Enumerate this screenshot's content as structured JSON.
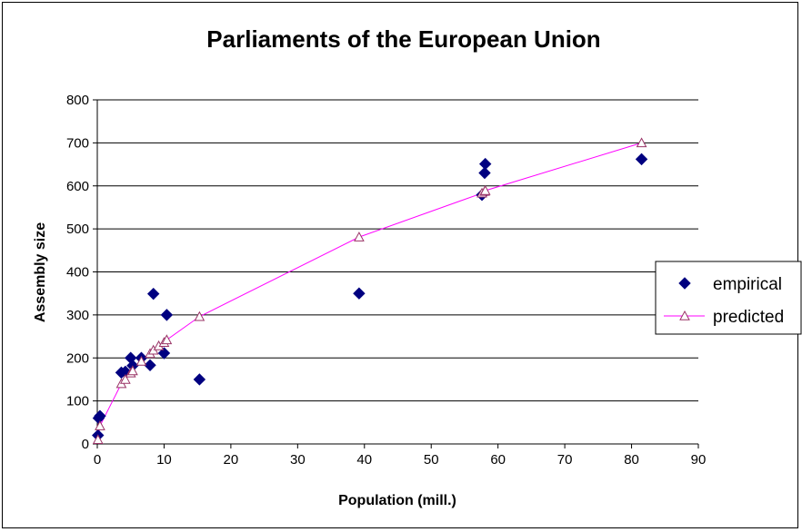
{
  "chart_data": {
    "type": "scatter",
    "title": "Parliaments of the European Union",
    "xlabel": "Population (mill.)",
    "ylabel": "Assembly size",
    "xlim": [
      0,
      90
    ],
    "ylim": [
      0,
      800
    ],
    "xticks": [
      0,
      10,
      20,
      30,
      40,
      50,
      60,
      70,
      80,
      90
    ],
    "yticks": [
      0,
      100,
      200,
      300,
      400,
      500,
      600,
      700,
      800
    ],
    "grid": "horizontal",
    "legend_position": "right",
    "series": [
      {
        "name": "empirical",
        "marker": "diamond",
        "color": "#000080",
        "line": false,
        "points": [
          [
            0.1,
            20
          ],
          [
            0.2,
            60
          ],
          [
            0.4,
            65
          ],
          [
            3.6,
            166
          ],
          [
            4.2,
            168
          ],
          [
            5.0,
            200
          ],
          [
            5.3,
            182
          ],
          [
            6.6,
            200
          ],
          [
            7.9,
            183
          ],
          [
            8.4,
            349
          ],
          [
            10.0,
            211
          ],
          [
            10.4,
            300
          ],
          [
            15.3,
            150
          ],
          [
            39.2,
            350
          ],
          [
            57.6,
            579
          ],
          [
            58.0,
            630
          ],
          [
            58.1,
            651
          ],
          [
            81.5,
            662
          ]
        ]
      },
      {
        "name": "predicted",
        "marker": "triangle-open",
        "color": "#FF00FF",
        "marker_color": "#993366",
        "line": true,
        "points": [
          [
            0.1,
            10
          ],
          [
            0.4,
            42
          ],
          [
            3.6,
            140
          ],
          [
            4.2,
            150
          ],
          [
            5.0,
            165
          ],
          [
            5.3,
            170
          ],
          [
            6.6,
            192
          ],
          [
            7.9,
            210
          ],
          [
            8.4,
            218
          ],
          [
            9.2,
            228
          ],
          [
            10.0,
            236
          ],
          [
            10.4,
            242
          ],
          [
            15.3,
            296
          ],
          [
            39.2,
            481
          ],
          [
            57.6,
            583
          ],
          [
            58.0,
            587
          ],
          [
            58.1,
            589
          ],
          [
            81.5,
            700
          ]
        ]
      }
    ]
  }
}
